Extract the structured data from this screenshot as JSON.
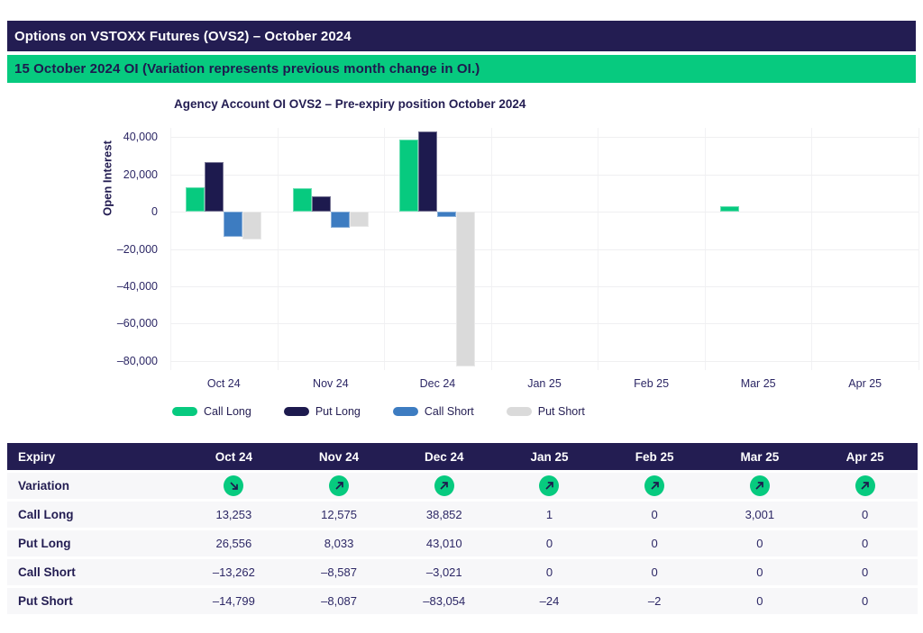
{
  "title_bar": {
    "text": "Options on VSTOXX Futures (OVS2) – October 2024"
  },
  "subtitle_bar": {
    "text": "15 October 2024 OI (Variation represents previous month change in OI.)"
  },
  "colors": {
    "header_navy": "#231d52",
    "text_navy": "#2c2765",
    "banner_green": "#07ca7f",
    "call_long": "#07ca7f",
    "put_long": "#1d1a4e",
    "call_short": "#3d7cc1",
    "put_short": "#dadada",
    "gridline": "#efeff1",
    "row_bg": "#f7f7f9"
  },
  "chart_data": {
    "type": "bar",
    "title": "Agency Account OI OVS2 – Pre-expiry position October 2024",
    "xlabel": "",
    "ylabel": "Open Interest",
    "categories": [
      "Oct 24",
      "Nov 24",
      "Dec 24",
      "Jan 25",
      "Feb 25",
      "Mar 25",
      "Apr 25"
    ],
    "series": [
      {
        "name": "Call Long",
        "color_key": "call_long",
        "values": [
          13253,
          12575,
          38852,
          1,
          0,
          3001,
          0
        ]
      },
      {
        "name": "Put Long",
        "color_key": "put_long",
        "values": [
          26556,
          8033,
          43010,
          0,
          0,
          0,
          0
        ]
      },
      {
        "name": "Call Short",
        "color_key": "call_short",
        "values": [
          -13262,
          -8587,
          -3021,
          0,
          0,
          0,
          0
        ]
      },
      {
        "name": "Put Short",
        "color_key": "put_short",
        "values": [
          -14799,
          -8087,
          -83054,
          -24,
          -2,
          0,
          0
        ]
      }
    ],
    "ylim": [
      -85000,
      45000
    ],
    "yticks": [
      40000,
      20000,
      0,
      -20000,
      -40000,
      -60000,
      -80000
    ],
    "grid": true,
    "legend_position": "bottom"
  },
  "table": {
    "header": [
      "Expiry",
      "Oct 24",
      "Nov 24",
      "Dec 24",
      "Jan 25",
      "Feb 25",
      "Mar 25",
      "Apr 25"
    ],
    "variation_label": "Variation",
    "variation": [
      "down",
      "up",
      "up",
      "up",
      "up",
      "up",
      "up"
    ],
    "rows": [
      {
        "label": "Call Long",
        "values": [
          "13,253",
          "12,575",
          "38,852",
          "1",
          "0",
          "3,001",
          "0"
        ]
      },
      {
        "label": "Put Long",
        "values": [
          "26,556",
          "8,033",
          "43,010",
          "0",
          "0",
          "0",
          "0"
        ]
      },
      {
        "label": "Call Short",
        "values": [
          "–13,262",
          "–8,587",
          "–3,021",
          "0",
          "0",
          "0",
          "0"
        ]
      },
      {
        "label": "Put Short",
        "values": [
          "–14,799",
          "–8,087",
          "–83,054",
          "–24",
          "–2",
          "0",
          "0"
        ]
      }
    ]
  }
}
